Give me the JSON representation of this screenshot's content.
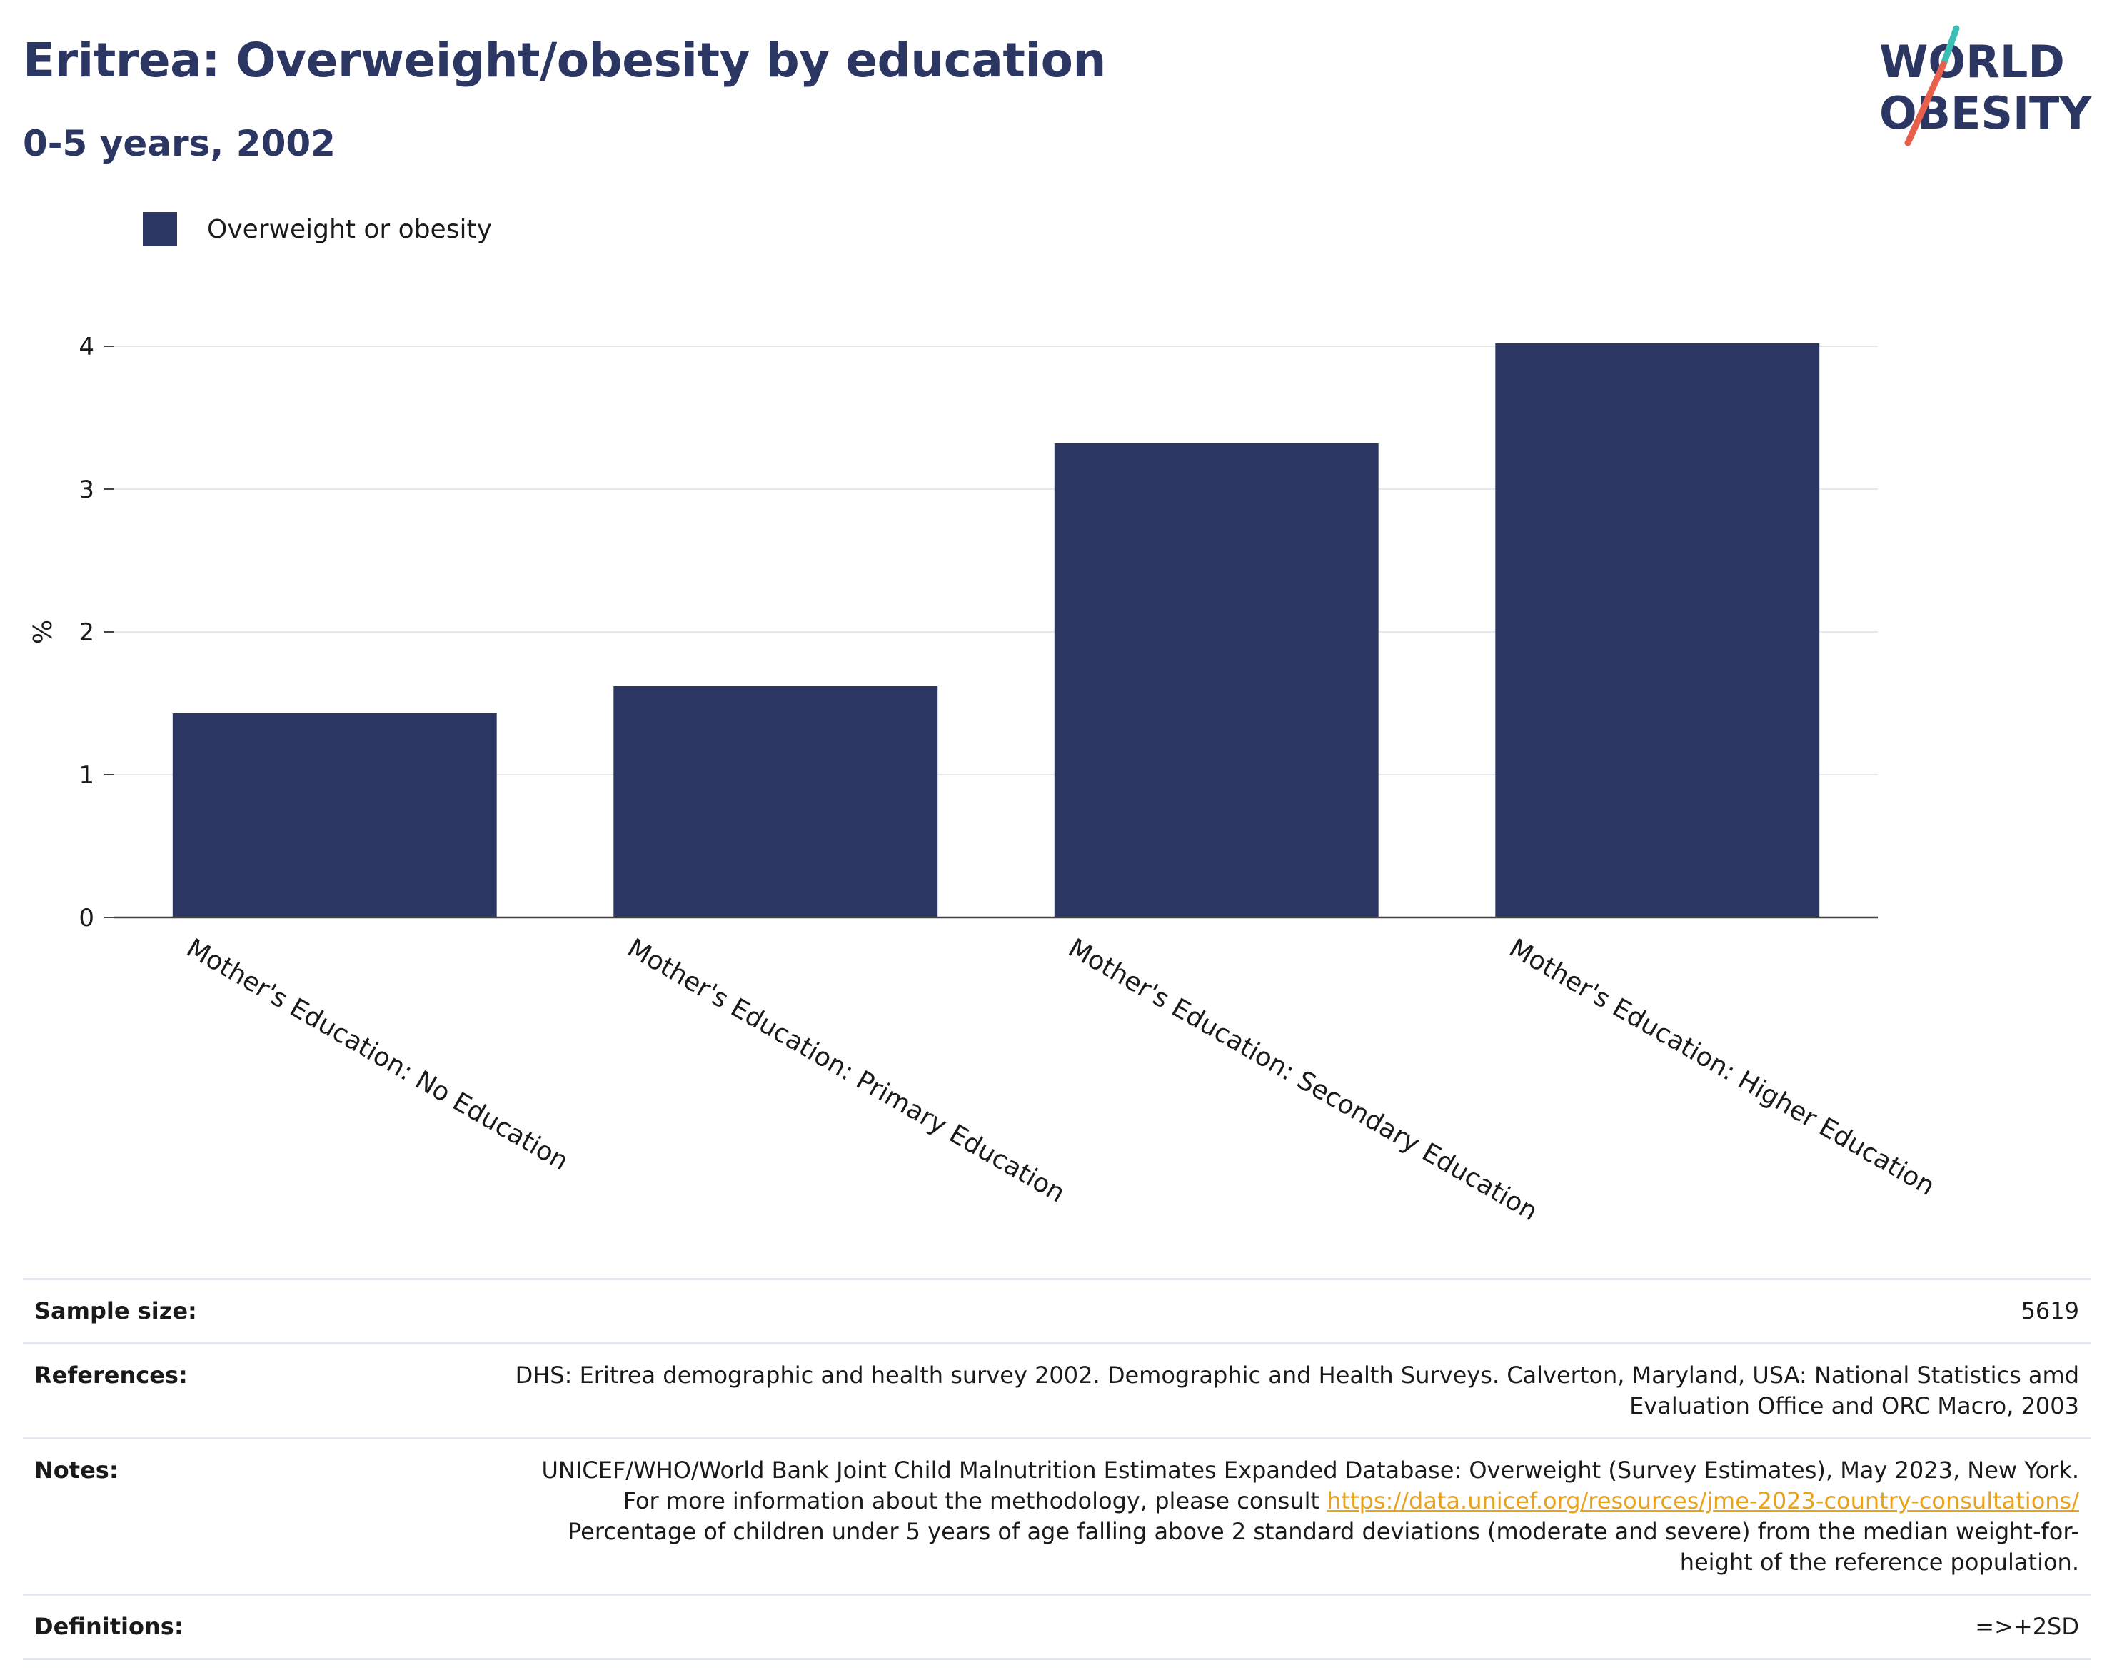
{
  "title": "Eritrea: Overweight/obesity by education",
  "subtitle": "0-5 years, 2002",
  "logo": {
    "line1": "WORLD",
    "line2": "OBESITY",
    "text_color": "#2b3663",
    "accent_teal": "#3bbfb4",
    "accent_red": "#e8604c"
  },
  "legend": {
    "label": "Overweight or obesity",
    "color": "#2b3663"
  },
  "chart_data": {
    "type": "bar",
    "categories": [
      "Mother's Education: No Education",
      "Mother's Education: Primary Education",
      "Mother's Education: Secondary Education",
      "Mother's Education: Higher Education"
    ],
    "series": [
      {
        "name": "Overweight or obesity",
        "values": [
          1.43,
          1.62,
          3.32,
          4.02
        ]
      }
    ],
    "ylabel": "%",
    "xlabel": "",
    "ylim": [
      0,
      4
    ],
    "yticks": [
      0,
      1,
      2,
      3,
      4
    ],
    "grid": true,
    "bar_color": "#2b3663",
    "legend_placement": "top-left"
  },
  "metadata": {
    "sample_size": {
      "label": "Sample size:",
      "value": "5619"
    },
    "references": {
      "label": "References:",
      "value": "DHS: Eritrea demographic and health survey 2002. Demographic and Health Surveys. Calverton, Maryland, USA: National Statistics amd Evaluation Office and ORC Macro, 2003"
    },
    "notes": {
      "label": "Notes:",
      "text_before": "UNICEF/WHO/World Bank Joint Child Malnutrition Estimates Expanded Database: Overweight (Survey Estimates), May 2023, New York. For more information about the methodology, please consult ",
      "link": "https://data.unicef.org/resources/jme-2023-country-consultations/",
      "text_after": " Percentage of children under 5 years of age falling above 2 standard deviations (moderate and severe) from the median weight-for-height of the reference population."
    },
    "definitions": {
      "label": "Definitions:",
      "value": "=>+2SD"
    }
  }
}
